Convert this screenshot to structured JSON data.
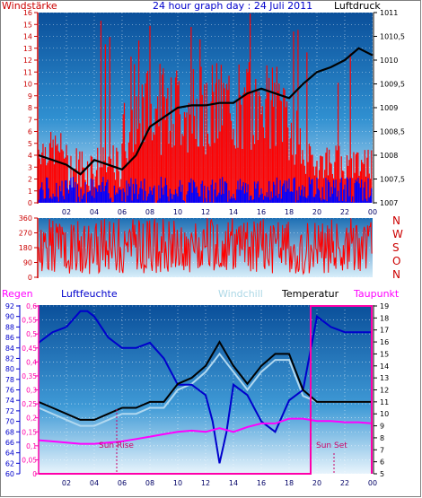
{
  "chart_data": [
    {
      "type": "line",
      "title": "24 hour graph day : 24 Juli 2011",
      "ylabel_left": "Windstärke",
      "ylabel_right": "Luftdruck",
      "colors": {
        "wind": "#ff0000",
        "windlow": "#0000ff",
        "pressure": "#000000",
        "axis_left": "#cc0000",
        "axis_right": "#000000",
        "title": "#0000cc"
      },
      "ylim_left": [
        0,
        16
      ],
      "left_ticks": [
        "0",
        "1",
        "2",
        "3",
        "4",
        "5",
        "6",
        "7",
        "8",
        "9",
        "10",
        "11",
        "12",
        "13",
        "14",
        "15",
        "16"
      ],
      "ylim_right": [
        1007,
        1011
      ],
      "right_ticks": [
        "1007",
        "1007,5",
        "1008",
        "1008,5",
        "1009",
        "1009,5",
        "1010",
        "1010,5",
        "1011"
      ],
      "x_ticks": [
        "02",
        "04",
        "06",
        "08",
        "10",
        "12",
        "14",
        "16",
        "18",
        "20",
        "22",
        "00"
      ],
      "series": [
        {
          "key": "pressure",
          "x": [
            0,
            1,
            2,
            3,
            3.5,
            4,
            5,
            6,
            7,
            8,
            9,
            10,
            11,
            12,
            13,
            14,
            15,
            16,
            17,
            18,
            19,
            20,
            21,
            22,
            23,
            24
          ],
          "values": [
            1008.0,
            1007.9,
            1007.8,
            1007.6,
            1007.75,
            1007.9,
            1007.8,
            1007.7,
            1008.0,
            1008.6,
            1008.8,
            1009.0,
            1009.05,
            1009.05,
            1009.1,
            1009.1,
            1009.3,
            1009.4,
            1009.3,
            1009.2,
            1009.5,
            1009.75,
            1009.85,
            1010.0,
            1010.25,
            1010.1
          ]
        }
      ]
    },
    {
      "type": "line",
      "ylabel_right": "N W S O N",
      "compass": [
        "N",
        "W",
        "S",
        "O",
        "N"
      ],
      "ylim": [
        0,
        360
      ],
      "left_ticks": [
        "0",
        "90",
        "180",
        "270",
        "360"
      ],
      "colors": {
        "dir": "#ff0000"
      }
    },
    {
      "type": "line",
      "legend": [
        "Regen",
        "Luftfeuchte",
        "Windchill",
        "Temperatur",
        "Taupunkt"
      ],
      "legend_colors": [
        "#ff00ff",
        "#0000cc",
        "#add8e6",
        "#000000",
        "#ff00ff"
      ],
      "humidity_ticks": [
        "60",
        "62",
        "64",
        "66",
        "68",
        "70",
        "72",
        "74",
        "76",
        "78",
        "80",
        "82",
        "84",
        "86",
        "88",
        "90",
        "92"
      ],
      "ylim_humidity": [
        60,
        92
      ],
      "rain_ticks": [
        "0",
        "0,05",
        "0,1",
        "0,15",
        "0,2",
        "0,25",
        "0,3",
        "0,35",
        "0,4",
        "0,45",
        "0,5",
        "0,55",
        "0,6"
      ],
      "ylim_rain": [
        0,
        0.6
      ],
      "temp_ticks": [
        "5",
        "6",
        "7",
        "8",
        "9",
        "10",
        "11",
        "12",
        "13",
        "14",
        "15",
        "16",
        "17",
        "18",
        "19"
      ],
      "ylim_temp": [
        5,
        19
      ],
      "x_ticks": [
        "02",
        "04",
        "06",
        "08",
        "10",
        "12",
        "14",
        "16",
        "18",
        "20",
        "22",
        "00"
      ],
      "annotations": [
        "Sun Rise",
        "Sun Set"
      ],
      "series": [
        {
          "key": "humidity",
          "name": "Luftfeuchte",
          "x": [
            0,
            1,
            2,
            3,
            3.5,
            4,
            5,
            6,
            7,
            8,
            9,
            10,
            11,
            12,
            12.5,
            13,
            13.5,
            14,
            15,
            16,
            17,
            18,
            19,
            20,
            21,
            22,
            23,
            24
          ],
          "values": [
            85,
            87,
            88,
            91,
            91,
            90,
            86,
            84,
            84,
            85,
            82,
            77,
            77,
            75,
            70,
            62,
            68,
            77,
            75,
            70,
            68,
            74,
            76,
            90,
            88,
            87,
            87,
            87
          ]
        },
        {
          "key": "temperature",
          "name": "Temperatur",
          "x": [
            0,
            1,
            2,
            3,
            4,
            5,
            6,
            7,
            8,
            9,
            10,
            11,
            12,
            13,
            14,
            15,
            16,
            17,
            18,
            19,
            20,
            21,
            22,
            23,
            24
          ],
          "values": [
            11,
            10.5,
            10,
            9.5,
            9.5,
            10,
            10.5,
            10.5,
            11,
            11,
            12.5,
            13,
            14,
            16,
            14,
            12.5,
            14,
            15,
            15,
            12,
            11,
            11,
            11,
            11,
            11
          ]
        },
        {
          "key": "windchill",
          "name": "Windchill",
          "x": [
            0,
            1,
            2,
            3,
            4,
            5,
            6,
            7,
            8,
            9,
            10,
            11,
            12,
            13,
            14,
            15,
            16,
            17,
            18,
            19,
            20,
            21,
            22,
            23,
            24
          ],
          "values": [
            10.5,
            10,
            9.5,
            9,
            9,
            9.5,
            10,
            10,
            10.5,
            10.5,
            12,
            12.5,
            13.5,
            15,
            13.5,
            12,
            13.5,
            14.5,
            14.5,
            11.5,
            11,
            11,
            11,
            11,
            11
          ]
        },
        {
          "key": "dewpoint",
          "name": "Taupunkt",
          "x": [
            0,
            1,
            2,
            3,
            4,
            5,
            6,
            7,
            8,
            9,
            10,
            11,
            12,
            13,
            14,
            15,
            16,
            17,
            18,
            19,
            20,
            21,
            22,
            23,
            24
          ],
          "values": [
            7.8,
            7.7,
            7.6,
            7.5,
            7.5,
            7.6,
            7.7,
            7.9,
            8.1,
            8.3,
            8.5,
            8.6,
            8.5,
            8.8,
            8.5,
            8.9,
            9.2,
            9.2,
            9.6,
            9.6,
            9.4,
            9.4,
            9.3,
            9.3,
            9.2
          ]
        }
      ]
    }
  ]
}
